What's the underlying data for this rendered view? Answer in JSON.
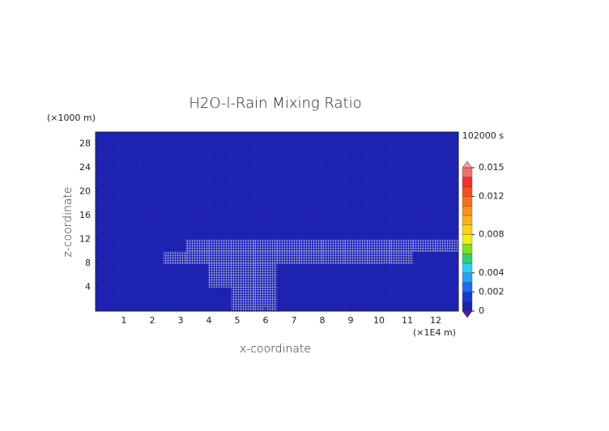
{
  "chart_data": {
    "type": "heatmap",
    "title": "H2O-l-Rain Mixing Ratio",
    "y_unit_label": "(×1000 m)",
    "x_unit_label": "(×1E4 m)",
    "time_label": "102000 s",
    "xlabel": "x-coordinate",
    "ylabel": "z-coordinate",
    "xlim": [
      0,
      12.8
    ],
    "ylim": [
      0,
      30
    ],
    "xticks": [
      1,
      2,
      3,
      4,
      5,
      6,
      7,
      8,
      9,
      10,
      11,
      12
    ],
    "yticks": [
      4,
      8,
      12,
      16,
      20,
      24,
      28
    ],
    "x": [
      0.4,
      1.2,
      2.0,
      2.8,
      3.6,
      4.4,
      5.2,
      6.0,
      6.8,
      7.6,
      8.4,
      9.2,
      10.0,
      10.8,
      11.6,
      12.4
    ],
    "y": [
      1,
      3,
      5,
      7,
      9,
      11,
      13,
      15,
      17,
      19,
      21,
      23,
      25,
      27,
      29
    ],
    "z": [
      [
        0,
        0,
        0,
        0,
        0,
        0,
        0.0003,
        0.0003,
        0,
        0,
        0,
        0,
        0,
        0,
        0,
        0
      ],
      [
        0,
        0,
        0,
        0,
        0,
        0,
        0.0003,
        0.0003,
        0,
        0,
        0,
        0,
        0,
        0,
        0,
        0
      ],
      [
        0,
        0,
        0,
        0,
        0,
        0.0003,
        0.0003,
        0.0003,
        0,
        0,
        0,
        0,
        0,
        0,
        0,
        0
      ],
      [
        0,
        0,
        0,
        0,
        0,
        0.0003,
        0.0003,
        0.0003,
        0,
        0,
        0,
        0,
        0,
        0,
        0,
        0
      ],
      [
        0,
        0,
        0,
        0.0003,
        0.0003,
        0.0003,
        0.0003,
        0.0003,
        0.0003,
        0.0003,
        0.0003,
        0.0003,
        0.0003,
        0.0003,
        0,
        0
      ],
      [
        0,
        0,
        0,
        0,
        0.0003,
        0.0003,
        0.0003,
        0.0003,
        0.0003,
        0.0003,
        0.0003,
        0.0003,
        0.0003,
        0.0003,
        0.0003,
        0.0003
      ],
      [
        0,
        0,
        0,
        0,
        0,
        0,
        0,
        0,
        0,
        0,
        0,
        0,
        0,
        0,
        0,
        0
      ],
      [
        0,
        0,
        0,
        0,
        0,
        0,
        0,
        0,
        0,
        0,
        0,
        0,
        0,
        0,
        0,
        0
      ],
      [
        0,
        0,
        0,
        0,
        0,
        0,
        0,
        0,
        0,
        0,
        0,
        0,
        0,
        0,
        0,
        0
      ],
      [
        0,
        0,
        0,
        0,
        0,
        0,
        0,
        0,
        0,
        0,
        0,
        0,
        0,
        0,
        0,
        0
      ],
      [
        0,
        0,
        0,
        0,
        0,
        0,
        0,
        0,
        0,
        0,
        0,
        0,
        0,
        0,
        0,
        0
      ],
      [
        0,
        0,
        0,
        0,
        0,
        0,
        0,
        0,
        0,
        0,
        0,
        0,
        0,
        0,
        0,
        0
      ],
      [
        0,
        0,
        0,
        0,
        0,
        0,
        0,
        0,
        0,
        0,
        0,
        0,
        0,
        0,
        0,
        0
      ],
      [
        0,
        0,
        0,
        0,
        0,
        0,
        0,
        0,
        0,
        0,
        0,
        0,
        0,
        0,
        0,
        0
      ],
      [
        0,
        0,
        0,
        0,
        0,
        0,
        0,
        0,
        0,
        0,
        0,
        0,
        0,
        0,
        0,
        0
      ]
    ],
    "colorbar": {
      "levels": [
        0,
        0.001,
        0.002,
        0.003,
        0.004,
        0.005,
        0.006,
        0.007,
        0.008,
        0.009,
        0.01,
        0.011,
        0.012,
        0.013,
        0.014,
        0.015
      ],
      "colors": [
        "#1d22b0",
        "#1a3ad0",
        "#1f6cf0",
        "#2aa0f5",
        "#30d0f0",
        "#30d070",
        "#80e020",
        "#f0f020",
        "#f8d020",
        "#f8b020",
        "#f89020",
        "#f87020",
        "#f05020",
        "#f03030",
        "#f07070"
      ],
      "under_color": "#5020a0",
      "over_color": "#f0a0a0",
      "ticks": [
        0,
        0.002,
        0.004,
        0.008,
        0.012,
        0.015
      ]
    }
  }
}
